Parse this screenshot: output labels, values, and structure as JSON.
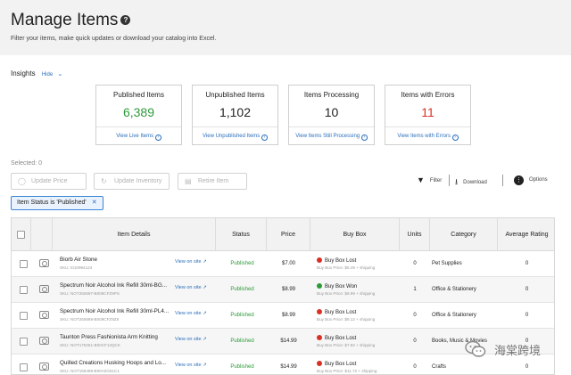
{
  "page": {
    "title": "Manage Items",
    "subtitle": "Filter your items, make quick updates or download your catalog into Excel."
  },
  "insights": {
    "label": "Insights",
    "toggle": "Hide",
    "cards": [
      {
        "label": "Published Items",
        "value": "6,389",
        "value_color": "#2e9a3a",
        "link": "View Live Items"
      },
      {
        "label": "Unpublished Items",
        "value": "1,102",
        "value_color": "#222222",
        "link": "View Unpublished Items"
      },
      {
        "label": "Items Processing",
        "value": "10",
        "value_color": "#222222",
        "link": "View Items Still Processing"
      },
      {
        "label": "Items with Errors",
        "value": "11",
        "value_color": "#d93025",
        "link": "View Items with Errors"
      }
    ]
  },
  "selection": {
    "label": "Selected: 0"
  },
  "actions": {
    "update_price": "Update Price",
    "update_inventory": "Update Inventory",
    "retire_item": "Retire Item"
  },
  "tools": {
    "filter": "Filter",
    "download": "Download",
    "options": "Options"
  },
  "filter_chip": {
    "label": "Item Status is 'Published'"
  },
  "table": {
    "columns": [
      "Item Details",
      "Status",
      "Price",
      "Buy Box",
      "Units",
      "Category",
      "Average Rating"
    ],
    "view_on_site": "View on site",
    "rows": [
      {
        "name": "Biorb Air Stone",
        "sku": "SKU: I010994124",
        "status": "Published",
        "price": "$7.00",
        "buybox": "Buy Box Lost",
        "buybox_color": "#d93025",
        "buybox_price": "Buy Box Price: $5.49 + shipping",
        "units": "0",
        "category": "Pet Supplies",
        "rating": "0"
      },
      {
        "name": "Spectrum Noir Alcohol Ink Refill 30ml-BG...",
        "sku": "SKU: NOT250697-B009CFZ9PS",
        "status": "Published",
        "price": "$8.99",
        "buybox": "Buy Box Won",
        "buybox_color": "#2e9a3a",
        "buybox_price": "Buy Box Price: $8.99 + shipping",
        "units": "1",
        "category": "Office & Stationery",
        "rating": "0"
      },
      {
        "name": "Spectrum Noir Alcohol Ink Refill 30ml-PL4...",
        "sku": "SKU: NOT250698-B009CFZ9Z8",
        "status": "Published",
        "price": "$8.99",
        "buybox": "Buy Box Lost",
        "buybox_color": "#d93025",
        "buybox_price": "Buy Box Price: $8.12 + shipping",
        "units": "0",
        "category": "Office & Stationery",
        "rating": "0"
      },
      {
        "name": "Taunton Press Fashionista Arm Knitting",
        "sku": "SKU: NOT175251-B00CF13QCK",
        "status": "Published",
        "price": "$14.99",
        "buybox": "Buy Box Lost",
        "buybox_color": "#d93025",
        "buybox_price": "Buy Box Price: $7.82 + shipping",
        "units": "0",
        "category": "Books, Music & Movies",
        "rating": "0"
      },
      {
        "name": "Quilled Creations Husking Hoops and Lo...",
        "sku": "SKU: NOT159498-B00A0G61C1",
        "status": "Published",
        "price": "$14.99",
        "buybox": "Buy Box Lost",
        "buybox_color": "#d93025",
        "buybox_price": "Buy Box Price: $11.72 + shipping",
        "units": "0",
        "category": "Crafts",
        "rating": "0"
      }
    ]
  },
  "watermark": {
    "text": "海棠跨境"
  }
}
